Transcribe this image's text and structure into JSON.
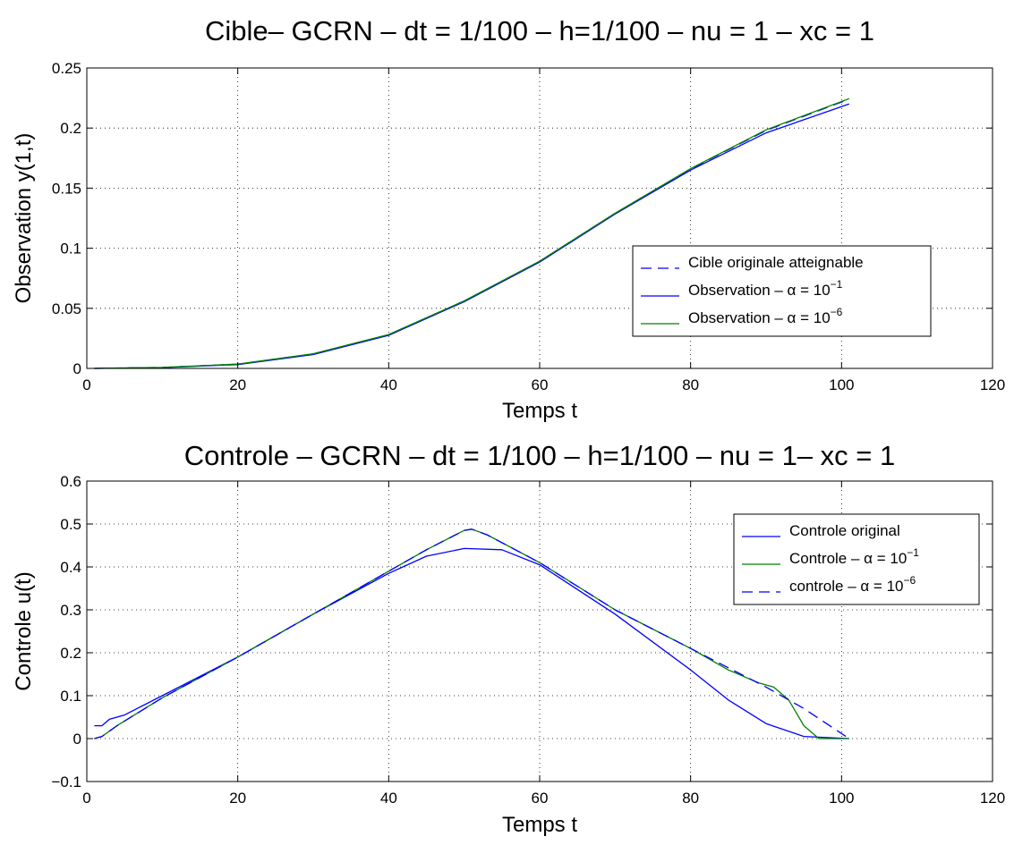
{
  "chart_data": [
    {
      "type": "line",
      "title": "Cible– GCRN – dt = 1/100 – h=1/100 – nu = 1 – xc = 1",
      "xlabel": "Temps t",
      "ylabel": "Observation y(1,t)",
      "xlim": [
        0,
        120
      ],
      "ylim": [
        0,
        0.25
      ],
      "xticks": [
        "0",
        "20",
        "40",
        "60",
        "80",
        "100",
        "120"
      ],
      "yticks": [
        "0",
        "0.05",
        "0.1",
        "0.15",
        "0.2",
        "0.25"
      ],
      "grid": true,
      "legend_position": "right",
      "colors": {
        "blue": "#0000ff",
        "green": "#008000"
      },
      "legend": [
        {
          "text": "Cible originale atteignable",
          "sup": "",
          "color": "#0000ff",
          "style": "dashed"
        },
        {
          "text": "Observation – α = 10",
          "sup": "−1",
          "color": "#0000ff",
          "style": "solid"
        },
        {
          "text": "Observation – α = 10",
          "sup": "−6",
          "color": "#008000",
          "style": "solid"
        }
      ],
      "series": [
        {
          "name": "Cible originale atteignable",
          "color": "#0000ff",
          "style": "dashed",
          "x": [
            1,
            10,
            20,
            30,
            40,
            50,
            60,
            70,
            80,
            90,
            101
          ],
          "y": [
            0,
            0.0008,
            0.0035,
            0.012,
            0.028,
            0.056,
            0.089,
            0.129,
            0.166,
            0.198,
            0.224
          ]
        },
        {
          "name": "Observation – α = 10−1",
          "color": "#0000ff",
          "style": "solid",
          "x": [
            1,
            10,
            20,
            30,
            40,
            50,
            60,
            70,
            80,
            90,
            101
          ],
          "y": [
            0,
            0.0007,
            0.0032,
            0.0115,
            0.0275,
            0.0555,
            0.0885,
            0.1285,
            0.165,
            0.196,
            0.22
          ]
        },
        {
          "name": "Observation – α = 10−6",
          "color": "#008000",
          "style": "solid",
          "x": [
            1,
            10,
            20,
            30,
            40,
            50,
            60,
            70,
            80,
            90,
            101
          ],
          "y": [
            0,
            0.0008,
            0.0036,
            0.0122,
            0.0282,
            0.0562,
            0.0892,
            0.1292,
            0.1662,
            0.1985,
            0.2245
          ]
        }
      ]
    },
    {
      "type": "line",
      "title": "Controle – GCRN – dt = 1/100 – h=1/100 – nu = 1– xc = 1",
      "xlabel": "Temps t",
      "ylabel": "Controle u(t)",
      "xlim": [
        0,
        120
      ],
      "ylim": [
        -0.1,
        0.6
      ],
      "xticks": [
        "0",
        "20",
        "40",
        "60",
        "80",
        "100",
        "120"
      ],
      "yticks": [
        "−0.1",
        "0",
        "0.1",
        "0.2",
        "0.3",
        "0.4",
        "0.5",
        "0.6"
      ],
      "grid": true,
      "legend_position": "top-right",
      "colors": {
        "blue": "#0000ff",
        "green": "#008000"
      },
      "legend": [
        {
          "text": "Controle original",
          "sup": "",
          "color": "#0000ff",
          "style": "solid"
        },
        {
          "text": "Controle – α = 10",
          "sup": "−1",
          "color": "#008000",
          "style": "solid"
        },
        {
          "text": "controle  – α = 10",
          "sup": "−6",
          "color": "#0000ff",
          "style": "dashed"
        }
      ],
      "series": [
        {
          "name": "Controle original",
          "color": "#0000ff",
          "style": "solid",
          "x": [
            1,
            2,
            3,
            5,
            10,
            20,
            30,
            40,
            45,
            50,
            55,
            60,
            70,
            80,
            85,
            90,
            95,
            101
          ],
          "y": [
            0.03,
            0.03,
            0.045,
            0.055,
            0.1,
            0.19,
            0.29,
            0.385,
            0.425,
            0.443,
            0.44,
            0.405,
            0.29,
            0.16,
            0.09,
            0.035,
            0.005,
            0
          ]
        },
        {
          "name": "Controle – α = 10−1",
          "color": "#008000",
          "style": "solid",
          "x": [
            1,
            2,
            4,
            10,
            20,
            30,
            40,
            45,
            50,
            51,
            53,
            60,
            70,
            80,
            85,
            89,
            91,
            93,
            95,
            97,
            101
          ],
          "y": [
            0,
            0.005,
            0.03,
            0.095,
            0.19,
            0.29,
            0.39,
            0.44,
            0.485,
            0.488,
            0.475,
            0.41,
            0.3,
            0.21,
            0.16,
            0.13,
            0.12,
            0.09,
            0.03,
            0,
            0
          ]
        },
        {
          "name": "controle  – α = 10−6",
          "color": "#0000ff",
          "style": "dashed",
          "x": [
            1,
            2,
            4,
            10,
            20,
            30,
            40,
            45,
            50,
            51,
            53,
            60,
            70,
            80,
            85,
            90,
            95,
            101
          ],
          "y": [
            0,
            0.005,
            0.03,
            0.095,
            0.19,
            0.29,
            0.39,
            0.44,
            0.485,
            0.488,
            0.475,
            0.41,
            0.3,
            0.21,
            0.165,
            0.12,
            0.07,
            0
          ]
        }
      ]
    }
  ]
}
